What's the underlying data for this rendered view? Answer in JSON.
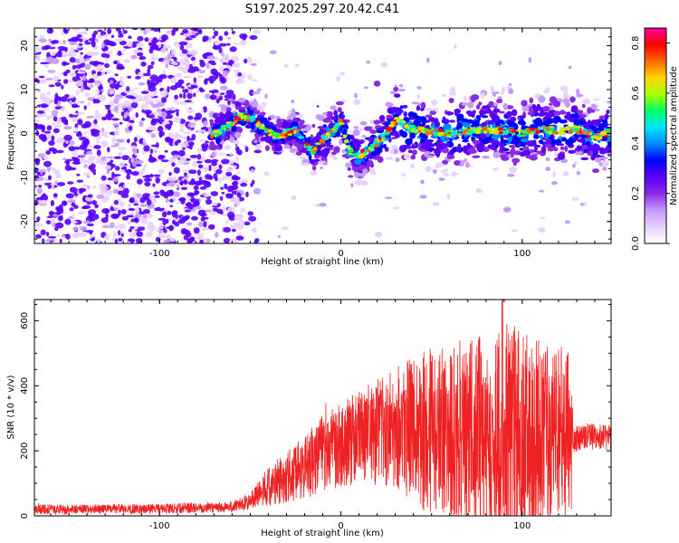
{
  "title": "S197.2025.297.20.42.C41",
  "chart_data": [
    {
      "type": "heatmap",
      "xlabel": "Height of straight line (km)",
      "ylabel": "Frequency (Hz)",
      "xlim": [
        -169,
        149
      ],
      "ylim": [
        -25,
        24
      ],
      "xticks": [
        -100,
        0,
        100
      ],
      "yticks": [
        -20,
        -10,
        0,
        10,
        20
      ],
      "colorbar": {
        "label": "Normalized spectral amplitude",
        "range": [
          0.0,
          0.86
        ],
        "ticks": [
          "0.0",
          "0.2",
          "0.4",
          "0.6",
          "0.8"
        ],
        "tick_values": [
          0.0,
          0.2,
          0.4,
          0.6,
          0.8
        ],
        "colors": [
          "#ffffff",
          "#e8d2ff",
          "#c59aff",
          "#8a2be2",
          "#5a00ff",
          "#0000ff",
          "#0088ff",
          "#00e5ff",
          "#00ff66",
          "#aaff00",
          "#ffd400",
          "#ff6a00",
          "#ff0000",
          "#ff00a0"
        ]
      },
      "ridge": {
        "description_points_x": [
          -73,
          -65,
          -60,
          -55,
          -50,
          -45,
          -40,
          -35,
          -30,
          -25,
          -20,
          -15,
          -10,
          -5,
          0,
          5,
          10,
          15,
          20,
          25,
          30,
          35,
          40,
          50,
          60,
          70,
          80,
          90,
          100,
          110,
          120,
          130,
          140,
          149
        ],
        "description_points_y": [
          -1,
          1,
          2.5,
          4,
          3.5,
          2,
          0.5,
          -1,
          0,
          1,
          -2,
          -4,
          -1,
          0,
          3,
          -4,
          -5,
          -4,
          -2,
          0,
          3,
          2,
          1,
          0.5,
          0,
          0.5,
          1,
          0.5,
          0,
          1,
          0.5,
          1,
          -1,
          0.5
        ]
      },
      "noise_region_x": [
        -169,
        -55
      ]
    },
    {
      "type": "line",
      "xlabel": "Height of straight line (km)",
      "ylabel": "SNR (10 * v/v)",
      "xlim": [
        -169,
        149
      ],
      "ylim": [
        0,
        665
      ],
      "xticks": [
        -100,
        0,
        100
      ],
      "yticks": [
        0,
        200,
        400,
        600
      ],
      "series": [
        {
          "name": "SNR",
          "color": "#ee2222",
          "envelope_x": [
            -169,
            -100,
            -60,
            -50,
            -40,
            -30,
            -20,
            -10,
            0,
            10,
            20,
            30,
            40,
            50,
            60,
            70,
            80,
            90,
            100,
            110,
            120,
            127,
            128,
            135,
            149
          ],
          "envelope_mean": [
            20,
            22,
            28,
            45,
            90,
            120,
            150,
            190,
            220,
            240,
            265,
            280,
            270,
            255,
            245,
            240,
            245,
            250,
            245,
            240,
            245,
            240,
            235,
            245,
            240
          ],
          "envelope_spread": [
            15,
            15,
            18,
            25,
            60,
            80,
            100,
            120,
            130,
            150,
            170,
            190,
            230,
            260,
            280,
            300,
            320,
            360,
            320,
            300,
            280,
            260,
            40,
            40,
            40
          ]
        }
      ]
    }
  ]
}
